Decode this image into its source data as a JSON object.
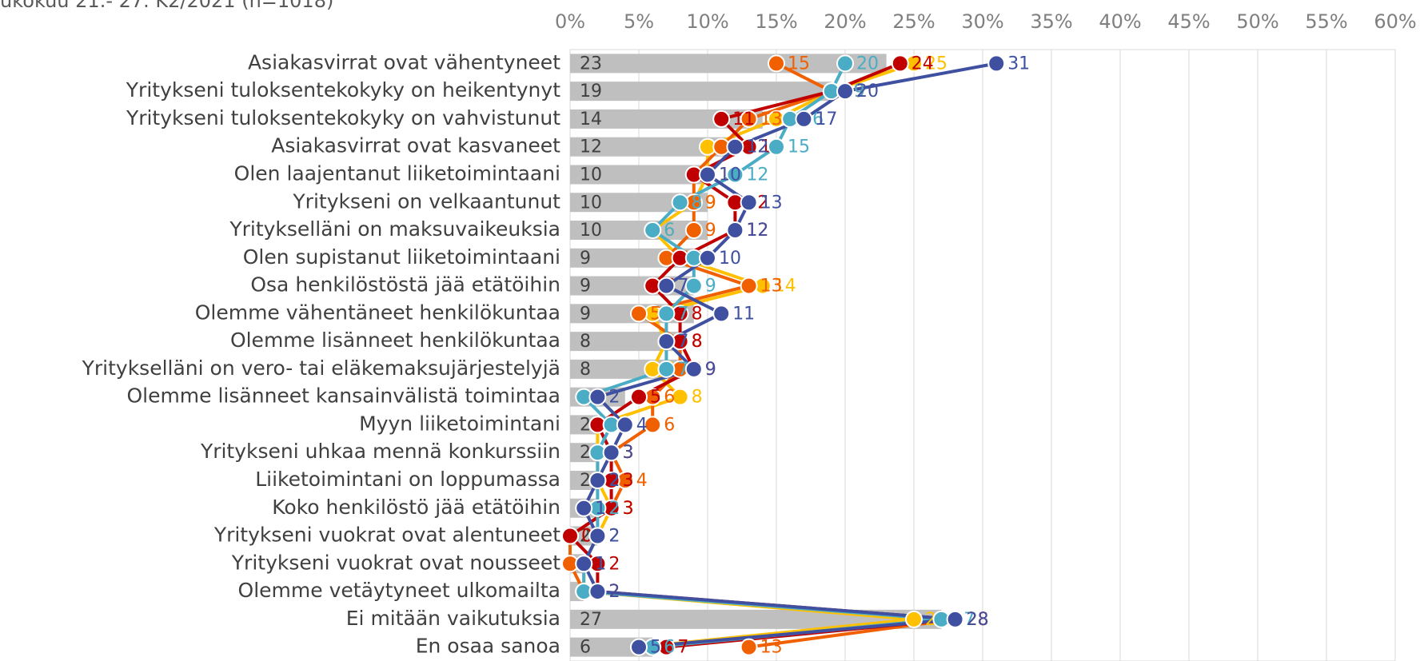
{
  "chart_data": {
    "type": "bar",
    "subtitle": "ukokuu 21.- 27. K2/2021 (n=1018)",
    "categories": [
      "Asiakasvirrat ovat vähentyneet",
      "Yritykseni tuloksentekokyky on heikentynyt",
      "Yritykseni tuloksentekokyky on vahvistunut",
      "Asiakasvirrat ovat kasvaneet",
      "Olen laajentanut liiketoimintaani",
      "Yritykseni on velkaantunut",
      "Yritykselläni on maksuvaikeuksia",
      "Olen supistanut liiketoimintaani",
      "Osa henkilöstöstä jää etätöihin",
      "Olemme vähentäneet henkilökuntaa",
      "Olemme lisänneet henkilökuntaa",
      "Yritykselläni on vero- tai eläkemaksujärjestelyjä",
      "Olemme lisänneet kansainvälistä toimintaa",
      "Myyn liiketoimintani",
      "Yritykseni uhkaa mennä konkurssiin",
      "Liiketoimintani on loppumassa",
      "Koko henkilöstö jää etätöihin",
      "Yritykseni vuokrat ovat alentuneet",
      "Yritykseni vuokrat ovat nousseet",
      "Olemme vetäytyneet ulkomailta",
      "Ei mitään vaikutuksia",
      "En osaa sanoa"
    ],
    "values": [
      23,
      19,
      14,
      12,
      10,
      10,
      10,
      9,
      9,
      9,
      8,
      8,
      4,
      2,
      2,
      2,
      2,
      2,
      1,
      1,
      27,
      6
    ],
    "color": "#bfbfbf",
    "series": [
      {
        "color": "#ffc000",
        "values": [
          25,
          19,
          15,
          10,
          10,
          9,
          6,
          8,
          14,
          6,
          7,
          6,
          8,
          2,
          2,
          2,
          3,
          2,
          1,
          1,
          25,
          5
        ]
      },
      {
        "color": "#f06000",
        "values": [
          15,
          19,
          13,
          11,
          9,
          9,
          9,
          7,
          13,
          5,
          8,
          8,
          6,
          6,
          3,
          4,
          3,
          0,
          0,
          1,
          28,
          13
        ]
      },
      {
        "color": "#c00000",
        "values": [
          24,
          19,
          11,
          13,
          9,
          12,
          12,
          8,
          6,
          8,
          8,
          9,
          5,
          2,
          3,
          3,
          3,
          0,
          2,
          2,
          28,
          7
        ]
      },
      {
        "color": "#4bacc6",
        "values": [
          20,
          19,
          16,
          15,
          12,
          8,
          6,
          9,
          9,
          7,
          7,
          7,
          1,
          3,
          2,
          2,
          2,
          2,
          1,
          1,
          27,
          6
        ]
      },
      {
        "color": "#4050a0",
        "values": [
          31,
          20,
          17,
          12,
          10,
          13,
          12,
          10,
          7,
          11,
          7,
          9,
          2,
          4,
          3,
          2,
          1,
          2,
          1,
          2,
          28,
          5
        ]
      }
    ],
    "xlim": [
      0,
      60
    ],
    "xticks": [
      {
        "value": 0,
        "label": "0%"
      },
      {
        "value": 5,
        "label": "5%"
      },
      {
        "value": 10,
        "label": "10%"
      },
      {
        "value": 15,
        "label": "15%"
      },
      {
        "value": 20,
        "label": "20%"
      },
      {
        "value": 25,
        "label": "25%"
      },
      {
        "value": 30,
        "label": "30%"
      },
      {
        "value": 35,
        "label": "35%"
      },
      {
        "value": 40,
        "label": "40%"
      },
      {
        "value": 45,
        "label": "45%"
      },
      {
        "value": 50,
        "label": "50%"
      },
      {
        "value": 55,
        "label": "55%"
      },
      {
        "value": 60,
        "label": "60%"
      }
    ],
    "grid": true
  }
}
